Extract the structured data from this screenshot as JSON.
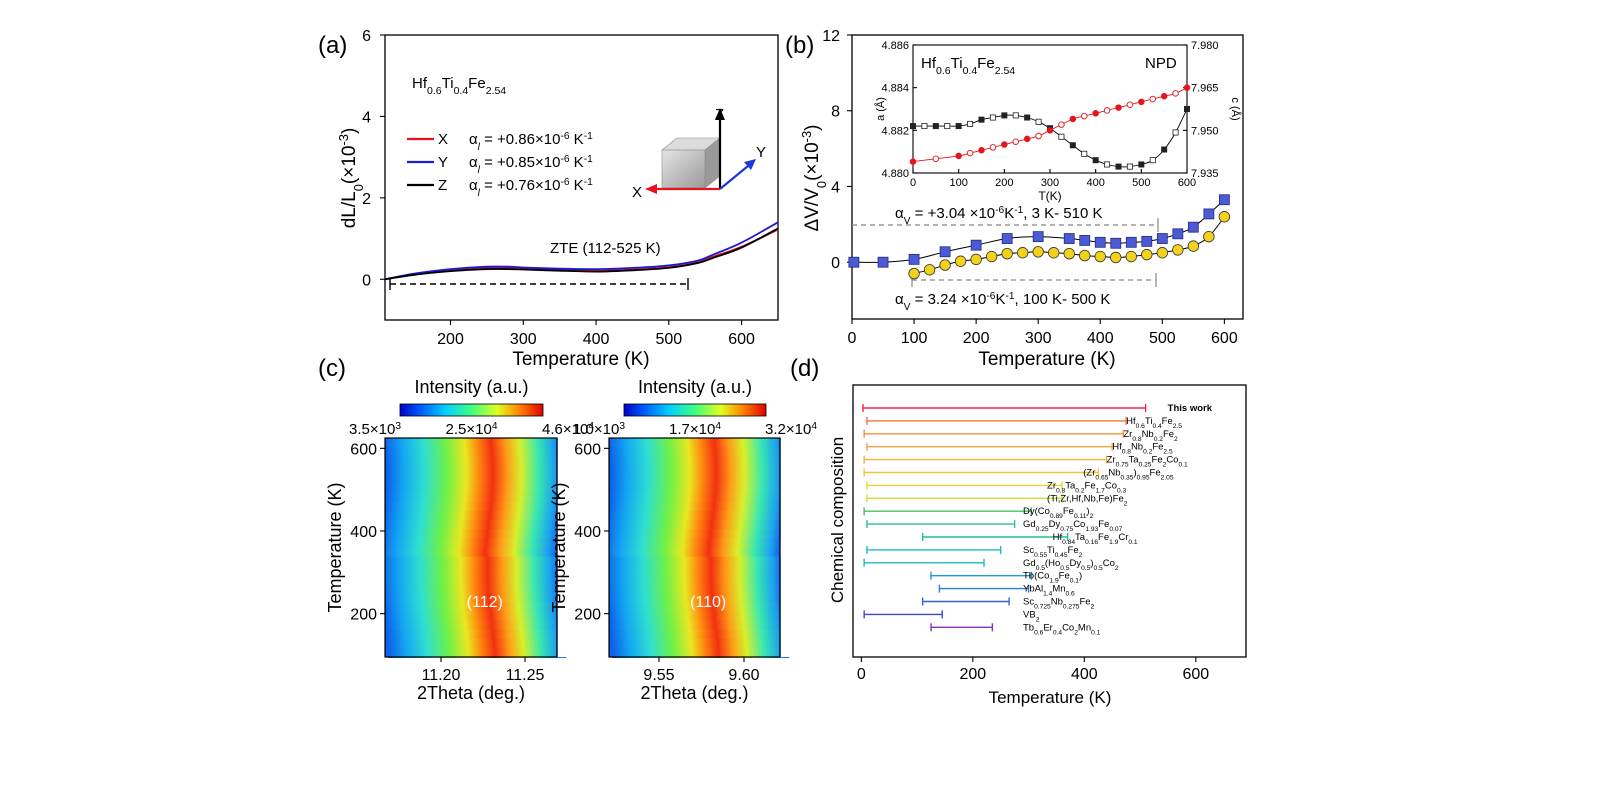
{
  "chart_data": [
    {
      "panel": "(a)",
      "type": "line",
      "xlabel": "Temperature (K)",
      "ylabel": "dL/L0(×10-3)",
      "xlim": [
        110,
        650
      ],
      "ylim": [
        -1,
        6
      ],
      "xticks": [
        "200",
        "300",
        "400",
        "500",
        "600"
      ],
      "yticks": [
        "0",
        "2",
        "4",
        "6"
      ],
      "composition": "Hf0.6Ti0.4Fe2.54",
      "annotation": "ZTE (112-525 K)",
      "legend": [
        {
          "axis": "X",
          "alpha": "αl = +0.86×10-6 K-1",
          "color": "#e8141c"
        },
        {
          "axis": "Y",
          "alpha": "αl = +0.85×10-6 K-1",
          "color": "#1a1ad6"
        },
        {
          "axis": "Z",
          "alpha": "αl = +0.76×10-6 K-1",
          "color": "#000000"
        }
      ],
      "cube_axes": [
        "X",
        "Y",
        "Z"
      ],
      "x": [
        110,
        150,
        200,
        250,
        280,
        300,
        350,
        400,
        450,
        500,
        540,
        560,
        600,
        650
      ],
      "series": [
        {
          "name": "X",
          "color": "#e8141c",
          "values": [
            0,
            0.12,
            0.22,
            0.28,
            0.28,
            0.27,
            0.23,
            0.21,
            0.24,
            0.3,
            0.42,
            0.55,
            0.8,
            1.22
          ]
        },
        {
          "name": "Y",
          "color": "#1a1ad6",
          "values": [
            0,
            0.14,
            0.25,
            0.31,
            0.31,
            0.29,
            0.26,
            0.25,
            0.28,
            0.34,
            0.46,
            0.6,
            0.9,
            1.4
          ]
        },
        {
          "name": "Z",
          "color": "#000000",
          "values": [
            0,
            0.11,
            0.2,
            0.25,
            0.25,
            0.24,
            0.21,
            0.19,
            0.22,
            0.28,
            0.4,
            0.52,
            0.78,
            1.25
          ]
        }
      ]
    },
    {
      "panel": "(b)",
      "type": "scatter",
      "xlabel": "Temperature (K)",
      "ylabel": "ΔV/V0(×10-3)",
      "xlim": [
        0,
        630
      ],
      "ylim": [
        -3,
        12
      ],
      "xticks": [
        "0",
        "100",
        "200",
        "300",
        "400",
        "500",
        "600"
      ],
      "yticks": [
        "0",
        "4",
        "8",
        "12"
      ],
      "annotation_top": "αV = +3.04 ×10-6K-1, 3 K- 510 K",
      "annotation_bottom": "αV = 3.24 ×10-6K-1, 100 K- 500 K",
      "series": [
        {
          "name": "",
          "color": "#4a5bd8",
          "marker": "square",
          "x": [
            3,
            50,
            100,
            150,
            200,
            250,
            300,
            350,
            375,
            400,
            425,
            450,
            475,
            500,
            525,
            550,
            575,
            600
          ],
          "values": [
            0,
            0,
            0.15,
            0.55,
            0.9,
            1.25,
            1.35,
            1.25,
            1.15,
            1.05,
            1.0,
            1.05,
            1.1,
            1.25,
            1.5,
            1.85,
            2.55,
            3.3
          ]
        },
        {
          "name": "",
          "color": "#f2d21b",
          "marker": "circle",
          "x": [
            100,
            125,
            150,
            175,
            200,
            225,
            250,
            275,
            300,
            325,
            350,
            375,
            400,
            425,
            450,
            475,
            500,
            525,
            550,
            575,
            600
          ],
          "values": [
            -0.6,
            -0.4,
            -0.15,
            0.05,
            0.15,
            0.3,
            0.45,
            0.5,
            0.55,
            0.5,
            0.45,
            0.35,
            0.3,
            0.25,
            0.3,
            0.4,
            0.5,
            0.65,
            0.85,
            1.35,
            2.4
          ]
        }
      ],
      "inset": {
        "title": "Hf0.6Ti0.4Fe2.54",
        "label": "NPD",
        "xlabel": "T(K)",
        "ylabel_left": "a (Å)",
        "ylabel_right": "c (Å)",
        "xlim": [
          0,
          600
        ],
        "ylim_left": [
          4.88,
          4.886
        ],
        "ylim_right": [
          7.935,
          7.98
        ],
        "xticks": [
          "0",
          "100",
          "200",
          "300",
          "400",
          "500",
          "600"
        ],
        "yticks_left": [
          "4.880",
          "4.882",
          "4.884",
          "4.886"
        ],
        "yticks_right": [
          "7.935",
          "7.950",
          "7.965",
          "7.980"
        ],
        "a_series": {
          "color": "#000000",
          "x": [
            0,
            25,
            50,
            75,
            100,
            125,
            150,
            175,
            200,
            225,
            250,
            275,
            300,
            325,
            350,
            375,
            400,
            425,
            450,
            475,
            500,
            525,
            550,
            575,
            600
          ],
          "values": [
            4.8822,
            4.8822,
            4.8822,
            4.8822,
            4.8822,
            4.8823,
            4.8825,
            4.8826,
            4.8827,
            4.8827,
            4.8826,
            4.8824,
            4.8821,
            4.8817,
            4.8813,
            4.8809,
            4.8806,
            4.8804,
            4.8803,
            4.8803,
            4.8804,
            4.8806,
            4.8811,
            4.8819,
            4.883
          ]
        },
        "c_series": {
          "color": "#e8141c",
          "x": [
            0,
            50,
            100,
            125,
            150,
            175,
            200,
            225,
            250,
            275,
            300,
            325,
            350,
            375,
            400,
            425,
            450,
            475,
            500,
            525,
            550,
            575,
            600
          ],
          "values": [
            7.939,
            7.94,
            7.941,
            7.942,
            7.943,
            7.944,
            7.945,
            7.946,
            7.947,
            7.948,
            7.95,
            7.952,
            7.954,
            7.955,
            7.956,
            7.957,
            7.958,
            7.959,
            7.96,
            7.961,
            7.962,
            7.963,
            7.965
          ]
        }
      }
    },
    {
      "panel": "(c)",
      "type": "heatmap",
      "colorbar_title": "Intensity (a.u.)",
      "ylabel": "Temperature (K)",
      "yticks": [
        "200",
        "400",
        "600"
      ],
      "maps": [
        {
          "colorbar_ticks": [
            "3.5×103",
            "2.5×104",
            "4.6×104"
          ],
          "xlabel": "2Theta (deg.)",
          "xticks": [
            "11.20",
            "11.25"
          ],
          "peak_label": "(112)"
        },
        {
          "colorbar_ticks": [
            "1.0×103",
            "1.7×104",
            "3.2×104"
          ],
          "xlabel": "2Theta (deg.)",
          "xticks": [
            "9.55",
            "9.60"
          ],
          "peak_label": "(110)"
        }
      ]
    },
    {
      "panel": "(d)",
      "type": "bar",
      "xlabel": "Temperature (K)",
      "ylabel": "Chemical composition",
      "xlim": [
        -15,
        690
      ],
      "xticks": [
        "0",
        "200",
        "400",
        "600"
      ],
      "entries": [
        {
          "label": "This work",
          "start": 3,
          "end": 510,
          "color": "#ee2a4a",
          "bold": true
        },
        {
          "label": "Hf0.6Ti0.4Fe2.5",
          "start": 10,
          "end": 475,
          "color": "#f2773c"
        },
        {
          "label": "Zr0.8Nb0.2Fe2",
          "start": 5,
          "end": 470,
          "color": "#f58f3f"
        },
        {
          "label": "Hf0.8Nb0.2Fe2.5",
          "start": 10,
          "end": 450,
          "color": "#f5a144"
        },
        {
          "label": "Zr0.75Ta0.25Fe2Co0.1",
          "start": 5,
          "end": 440,
          "color": "#f3b340"
        },
        {
          "label": "(Zr0.65Nb0.35)0.95Fe2.05",
          "start": 5,
          "end": 425,
          "color": "#f0c53a"
        },
        {
          "label": "Zr0.8Ta0.2Fe1.7Co0.3",
          "start": 10,
          "end": 360,
          "color": "#e9d634"
        },
        {
          "label": "(Ti,Zr,Hf,Nb,Fe)Fe2",
          "start": 10,
          "end": 360,
          "color": "#d0df31"
        },
        {
          "label": "Dy(Co0.89Fe0.11)2",
          "start": 5,
          "end": 305,
          "color": "#45c35a"
        },
        {
          "label": "Gd0.25Dy0.75Co1.93Fe0.07",
          "start": 10,
          "end": 275,
          "color": "#2fc48e"
        },
        {
          "label": "Hf0.84Ta0.16Fe1.9Cr0.1",
          "start": 110,
          "end": 370,
          "color": "#20c09a"
        },
        {
          "label": "Sc0.55Ti0.45Fe2",
          "start": 10,
          "end": 250,
          "color": "#1fbfb5"
        },
        {
          "label": "Gd0.5(Ho0.5Dy0.5)0.5Co2",
          "start": 5,
          "end": 220,
          "color": "#1fb8c5"
        },
        {
          "label": "Tb(Co1.9Fe0.1)",
          "start": 125,
          "end": 305,
          "color": "#1f9ccf"
        },
        {
          "label": "YbAl1.4Mn0.6",
          "start": 140,
          "end": 300,
          "color": "#2a7fd6"
        },
        {
          "label": "Sc0.725Nb0.275Fe2",
          "start": 110,
          "end": 265,
          "color": "#3a63d2"
        },
        {
          "label": "VB2",
          "start": 5,
          "end": 145,
          "color": "#3c48c8"
        },
        {
          "label": "Tb0.6Er0.4Co2Mn0.1",
          "start": 125,
          "end": 235,
          "color": "#8a2fc2"
        }
      ]
    }
  ]
}
